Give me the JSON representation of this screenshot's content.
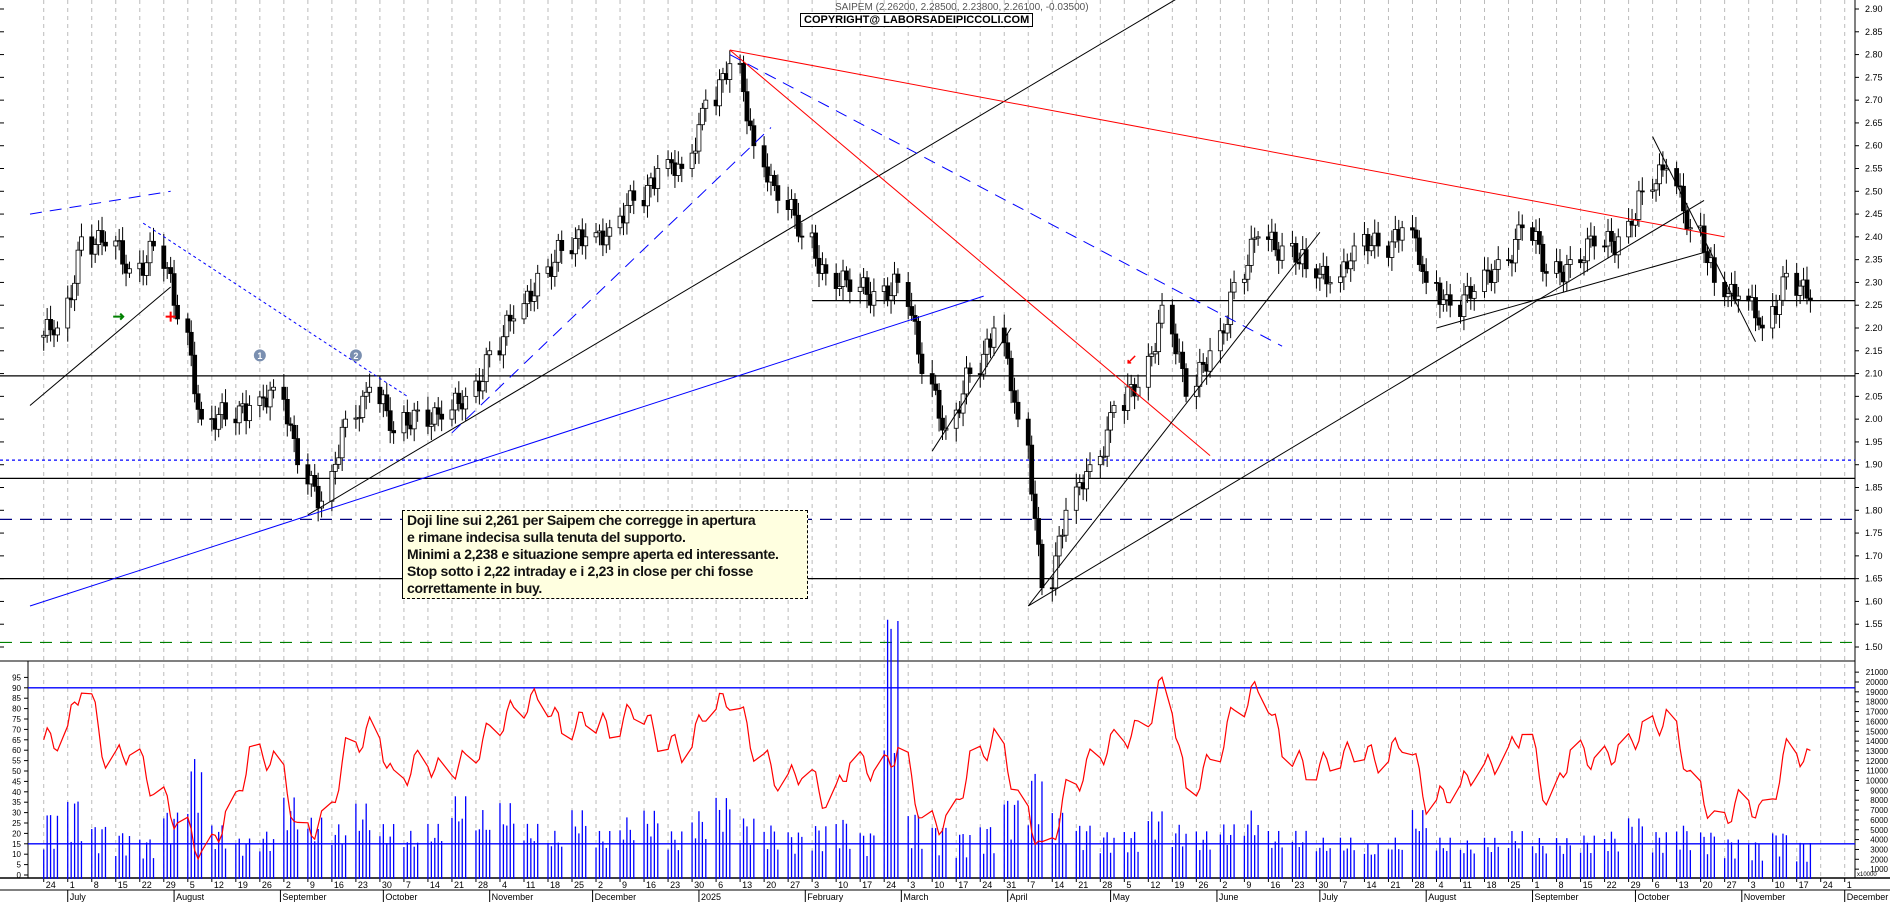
{
  "header": {
    "title": "SAIPEM (2.26200, 2.28500, 2.23800, 2.26100, -0.03500)",
    "copyright": "COPYRIGHT@ LABORSADEIPICCOLI.COM"
  },
  "annotation": {
    "lines": [
      "Doji line sui 2,261 per Saipem che corregge in apertura",
      "e rimane indecisa sulla tenuta del supporto.",
      "Minimi a 2,238 e situazione sempre aperta ed interessante.",
      "Stop sotto i 2,22 intraday e i 2,23 in close per chi fosse",
      "correttamente in buy."
    ]
  },
  "colors": {
    "up_body": "#ffffff",
    "down_body": "#000000",
    "rsi": "#ff0000",
    "volume": "#0000ff",
    "support": "#000000",
    "blue": "#0000ff",
    "red": "#ff0000",
    "green": "#008000"
  },
  "chart_data": {
    "type": "candlestick",
    "title": "SAIPEM",
    "x_range": [
      "2024-06-20",
      "2025-12-04"
    ],
    "price_axis": {
      "ylim": [
        1.48,
        2.92
      ],
      "ticks": [
        2.9,
        2.85,
        2.8,
        2.75,
        2.7,
        2.65,
        2.6,
        2.55,
        2.5,
        2.45,
        2.4,
        2.35,
        2.3,
        2.25,
        2.2,
        2.15,
        2.1,
        2.05,
        2.0,
        1.95,
        1.9,
        1.85,
        1.8,
        1.75,
        1.7,
        1.65,
        1.6,
        1.55,
        1.5
      ]
    },
    "indicator_axis": {
      "ylim": [
        0,
        100
      ],
      "ticks": [
        0,
        5,
        10,
        15,
        20,
        25,
        30,
        35,
        40,
        45,
        50,
        55,
        60,
        65,
        70,
        75,
        80,
        85,
        90,
        95
      ]
    },
    "volume_axis": {
      "ylim": [
        0,
        22000
      ],
      "ticks": [
        1000,
        2000,
        3000,
        4000,
        5000,
        6000,
        7000,
        8000,
        9000,
        10000,
        11000,
        12000,
        13000,
        14000,
        15000,
        16000,
        17000,
        18000,
        19000,
        20000,
        21000
      ],
      "unit_label": "x10000"
    },
    "weeks_start": "2024-06-24",
    "weekly_close": [
      2.2,
      2.4,
      2.38,
      2.33,
      2.38,
      2.22,
      2.0,
      2.0,
      2.03,
      2.07,
      1.9,
      1.82,
      2.0,
      2.07,
      1.97,
      2.02,
      2.0,
      2.05,
      2.15,
      2.22,
      2.32,
      2.37,
      2.4,
      2.42,
      2.48,
      2.55,
      2.55,
      2.7,
      2.78,
      2.6,
      2.48,
      2.4,
      2.32,
      2.28,
      2.28,
      2.3,
      2.1,
      1.98,
      2.1,
      2.2,
      2.0,
      1.63,
      1.8,
      1.9,
      2.03,
      2.07,
      2.25,
      2.05,
      2.15,
      2.3,
      2.4,
      2.38,
      2.33,
      2.3,
      2.38,
      2.38,
      2.42,
      2.3,
      2.25,
      2.28,
      2.35,
      2.42,
      2.32,
      2.35,
      2.38,
      2.4,
      2.5,
      2.55,
      2.42,
      2.3,
      2.27,
      2.2,
      2.32,
      2.261
    ],
    "weekly_indicator": [
      65,
      92,
      55,
      60,
      40,
      25,
      10,
      28,
      58,
      55,
      20,
      25,
      60,
      70,
      45,
      55,
      50,
      55,
      70,
      80,
      85,
      70,
      75,
      70,
      80,
      65,
      60,
      80,
      85,
      60,
      45,
      50,
      35,
      55,
      50,
      60,
      25,
      25,
      55,
      65,
      35,
      10,
      40,
      55,
      65,
      70,
      92,
      40,
      55,
      80,
      90,
      60,
      50,
      55,
      60,
      55,
      65,
      35,
      40,
      50,
      55,
      70,
      35,
      60,
      55,
      60,
      70,
      75,
      45,
      25,
      35,
      30,
      60,
      55
    ],
    "weekly_volume": [
      5000,
      6000,
      4000,
      3500,
      3000,
      5000,
      9000,
      4000,
      3000,
      3500,
      6000,
      4500,
      4000,
      5500,
      4000,
      3500,
      4000,
      6000,
      5000,
      5500,
      4000,
      3500,
      5000,
      3500,
      4500,
      5000,
      3500,
      5000,
      6000,
      4500,
      4000,
      3500,
      4000,
      4500,
      3500,
      20000,
      5000,
      4000,
      3500,
      4000,
      6000,
      8000,
      5000,
      4000,
      3500,
      3500,
      5000,
      4000,
      3500,
      4000,
      5000,
      3500,
      3500,
      3000,
      3000,
      2500,
      3000,
      5000,
      3000,
      2800,
      3000,
      3500,
      3000,
      3000,
      3200,
      3500,
      4500,
      3500,
      4000,
      3500,
      3000,
      2800,
      3500,
      2800
    ],
    "horizontal_levels": [
      {
        "price": 2.26,
        "style": "solid",
        "color": "#000000",
        "from": "2025-02-03"
      },
      {
        "price": 2.095,
        "style": "solid",
        "color": "#000000"
      },
      {
        "price": 1.91,
        "style": "dotted",
        "color": "#0000ff"
      },
      {
        "price": 1.87,
        "style": "solid",
        "color": "#000000"
      },
      {
        "price": 1.78,
        "style": "dashed",
        "color": "#000080"
      },
      {
        "price": 1.65,
        "style": "solid",
        "color": "#000000"
      },
      {
        "price": 1.51,
        "style": "dashed",
        "color": "#008000"
      }
    ],
    "trendlines": [
      {
        "from": [
          "2024-06-20",
          2.03
        ],
        "to": [
          "2024-07-31",
          2.29
        ],
        "color": "#000000",
        "style": "solid"
      },
      {
        "from": [
          "2024-06-20",
          2.45
        ],
        "to": [
          "2024-07-31",
          2.5
        ],
        "color": "#0000ff",
        "style": "dashed"
      },
      {
        "from": [
          "2024-07-23",
          2.43
        ],
        "to": [
          "2024-10-08",
          2.05
        ],
        "color": "#0000ff",
        "style": "dotted"
      },
      {
        "from": [
          "2024-09-09",
          1.79
        ],
        "to": [
          "2025-05-22",
          2.93
        ],
        "color": "#000000",
        "style": "solid"
      },
      {
        "from": [
          "2024-06-20",
          1.59
        ],
        "to": [
          "2025-03-25",
          2.27
        ],
        "color": "#0000ff",
        "style": "solid"
      },
      {
        "from": [
          "2024-10-21",
          1.97
        ],
        "to": [
          "2025-01-22",
          2.64
        ],
        "color": "#0000ff",
        "style": "dashed"
      },
      {
        "from": [
          "2025-01-10",
          2.81
        ],
        "to": [
          "2025-10-27",
          2.4
        ],
        "color": "#ff0000",
        "style": "solid"
      },
      {
        "from": [
          "2025-01-10",
          2.81
        ],
        "to": [
          "2025-05-30",
          1.92
        ],
        "color": "#ff0000",
        "style": "solid"
      },
      {
        "from": [
          "2025-01-10",
          2.8
        ],
        "to": [
          "2025-06-20",
          2.16
        ],
        "color": "#0000ff",
        "style": "dashed"
      },
      {
        "from": [
          "2025-03-10",
          1.93
        ],
        "to": [
          "2025-04-02",
          2.2
        ],
        "color": "#000000",
        "style": "solid"
      },
      {
        "from": [
          "2025-04-07",
          1.59
        ],
        "to": [
          "2025-07-01",
          2.41
        ],
        "color": "#000000",
        "style": "solid"
      },
      {
        "from": [
          "2025-04-07",
          1.59
        ],
        "to": [
          "2025-10-21",
          2.48
        ],
        "color": "#000000",
        "style": "solid"
      },
      {
        "from": [
          "2025-08-04",
          2.2
        ],
        "to": [
          "2025-10-23",
          2.37
        ],
        "color": "#000000",
        "style": "solid"
      },
      {
        "from": [
          "2025-10-06",
          2.62
        ],
        "to": [
          "2025-11-05",
          2.17
        ],
        "color": "#000000",
        "style": "solid"
      }
    ],
    "markers": [
      {
        "date": "2024-08-26",
        "price": 2.14,
        "label": "1",
        "kind": "circle"
      },
      {
        "date": "2024-09-23",
        "price": 2.14,
        "label": "2",
        "kind": "circle"
      },
      {
        "date": "2024-07-16",
        "price": 2.225,
        "kind": "green-arrow"
      },
      {
        "date": "2024-07-31",
        "price": 2.225,
        "kind": "red-cross"
      },
      {
        "date": "2025-05-07",
        "price": 2.13,
        "kind": "red-arrow"
      }
    ],
    "indicator_levels": [
      90,
      15
    ],
    "months": [
      {
        "date": "2024-07-01",
        "label": "July"
      },
      {
        "date": "2024-08-01",
        "label": "August"
      },
      {
        "date": "2024-09-01",
        "label": "September"
      },
      {
        "date": "2024-10-01",
        "label": "October"
      },
      {
        "date": "2024-11-01",
        "label": "November"
      },
      {
        "date": "2024-12-01",
        "label": "December"
      },
      {
        "date": "2025-01-01",
        "label": "2025"
      },
      {
        "date": "2025-02-01",
        "label": "February"
      },
      {
        "date": "2025-03-01",
        "label": "March"
      },
      {
        "date": "2025-04-01",
        "label": "April"
      },
      {
        "date": "2025-05-01",
        "label": "May"
      },
      {
        "date": "2025-06-01",
        "label": "June"
      },
      {
        "date": "2025-07-01",
        "label": "July"
      },
      {
        "date": "2025-08-01",
        "label": "August"
      },
      {
        "date": "2025-09-01",
        "label": "September"
      },
      {
        "date": "2025-10-01",
        "label": "October"
      },
      {
        "date": "2025-11-01",
        "label": "November"
      },
      {
        "date": "2025-12-01",
        "label": "December"
      }
    ]
  }
}
